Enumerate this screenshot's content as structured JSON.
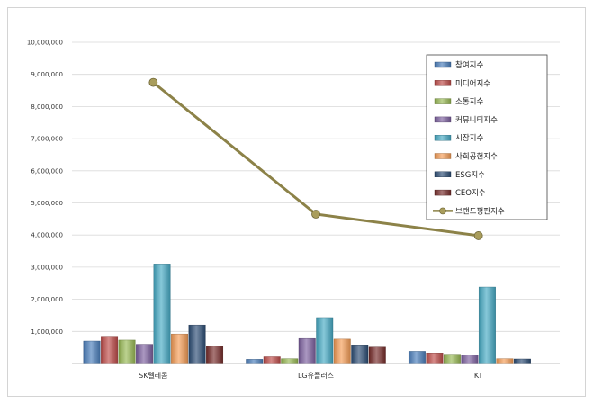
{
  "chart_data": {
    "type": "bar",
    "categories": [
      "SK텔레콤",
      "LG유플러스",
      "KT"
    ],
    "ylim": [
      0,
      10000000
    ],
    "yticks": [
      "-",
      "1,000,000",
      "2,000,000",
      "3,000,000",
      "4,000,000",
      "5,000,000",
      "6,000,000",
      "7,000,000",
      "8,000,000",
      "9,000,000",
      "10,000,000"
    ],
    "series": [
      {
        "name": "참여지수",
        "color": "#4a7ebb",
        "values": [
          700000,
          130000,
          380000
        ]
      },
      {
        "name": "미디어지수",
        "color": "#be4b48",
        "values": [
          850000,
          210000,
          330000
        ]
      },
      {
        "name": "소통지수",
        "color": "#98b954",
        "values": [
          730000,
          150000,
          290000
        ]
      },
      {
        "name": "커뮤니티지수",
        "color": "#7d60a0",
        "values": [
          600000,
          780000,
          260000
        ]
      },
      {
        "name": "시장지수",
        "color": "#46aac5",
        "values": [
          3100000,
          1430000,
          2380000
        ]
      },
      {
        "name": "사회공헌지수",
        "color": "#f59d56",
        "values": [
          920000,
          760000,
          150000
        ]
      },
      {
        "name": "ESG지수",
        "color": "#2c4d75",
        "values": [
          1200000,
          580000,
          140000
        ]
      },
      {
        "name": "CEO지수",
        "color": "#772c2a",
        "values": [
          540000,
          510000,
          0
        ]
      }
    ],
    "line_series": {
      "name": "브랜드평판지수",
      "color": "#8c8248",
      "values": [
        8750000,
        4650000,
        3980000
      ]
    },
    "title": "",
    "xlabel": "",
    "ylabel": "",
    "grid": true,
    "legend": "top-right"
  }
}
